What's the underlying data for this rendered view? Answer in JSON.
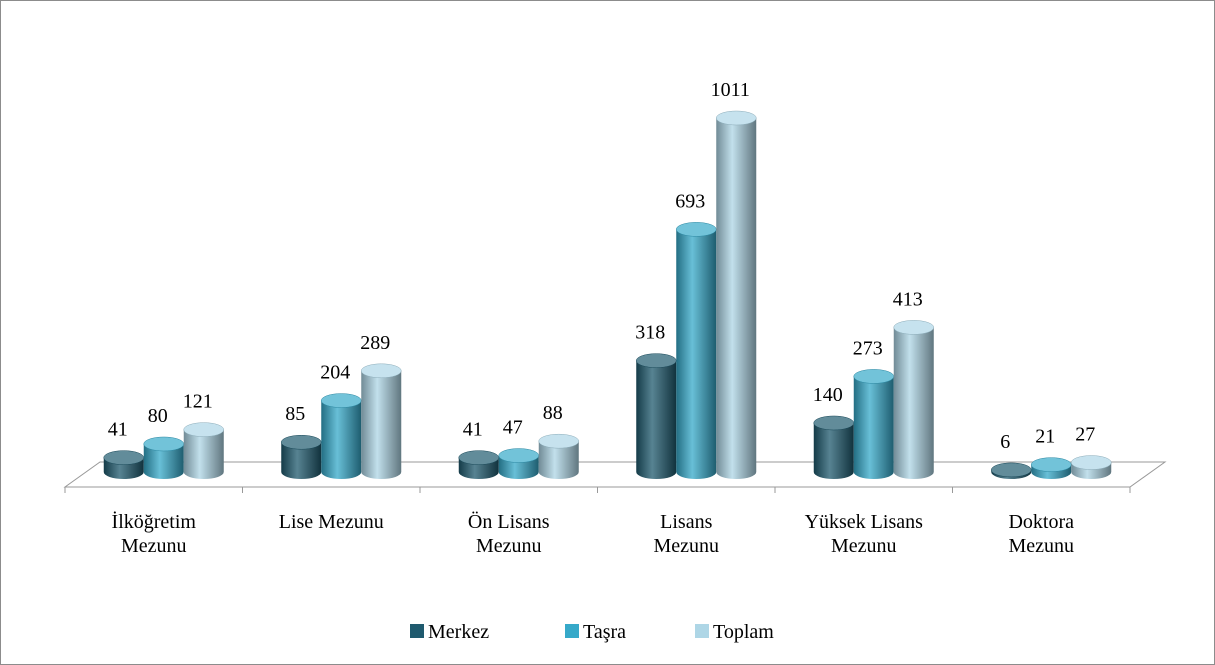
{
  "chart_data": {
    "type": "bar3d",
    "categories": [
      "İlköğretim Mezunu",
      "Lise Mezunu",
      "Ön Lisans Mezunu",
      "Lisans Mezunu",
      "Yüksek Lisans Mezunu",
      "Doktora Mezunu"
    ],
    "series": [
      {
        "name": "Merkez",
        "color": "#1f5a6e",
        "values": [
          41,
          85,
          41,
          318,
          140,
          6
        ]
      },
      {
        "name": "Taşra",
        "color": "#36a9c9",
        "values": [
          80,
          204,
          47,
          693,
          273,
          21
        ]
      },
      {
        "name": "Toplam",
        "color": "#aed6e6",
        "values": [
          121,
          289,
          88,
          1011,
          413,
          27
        ]
      }
    ],
    "legend": "bottom"
  }
}
